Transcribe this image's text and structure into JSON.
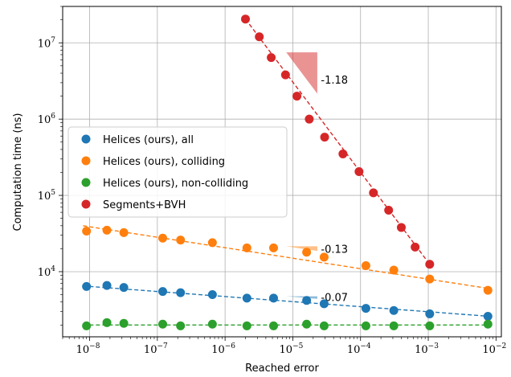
{
  "chart_data": {
    "type": "scatter",
    "title": "",
    "xlabel": "Reached error",
    "ylabel": "Computation time (ns)",
    "xscale": "log",
    "yscale": "log",
    "xlim": [
      4e-09,
      0.012
    ],
    "ylim": [
      1400,
      30000000
    ],
    "grid": true,
    "legend_position": "center-left",
    "x_ticks": [
      {
        "value": 1e-08,
        "base": "10",
        "exp": "−8"
      },
      {
        "value": 1e-07,
        "base": "10",
        "exp": "−7"
      },
      {
        "value": 1e-06,
        "base": "10",
        "exp": "−6"
      },
      {
        "value": 1e-05,
        "base": "10",
        "exp": "−5"
      },
      {
        "value": 0.0001,
        "base": "10",
        "exp": "−4"
      },
      {
        "value": 0.001,
        "base": "10",
        "exp": "−3"
      },
      {
        "value": 0.01,
        "base": "10",
        "exp": "−2"
      }
    ],
    "y_ticks": [
      {
        "value": 10000,
        "base": "10",
        "exp": "4"
      },
      {
        "value": 100000,
        "base": "10",
        "exp": "5"
      },
      {
        "value": 1000000,
        "base": "10",
        "exp": "6"
      },
      {
        "value": 10000000,
        "base": "10",
        "exp": "7"
      }
    ],
    "series": [
      {
        "name": "Helices (ours), all",
        "color": "#1f77b4",
        "x": [
          9e-09,
          1.8e-08,
          3.2e-08,
          1.2e-07,
          2.2e-07,
          6.5e-07,
          2.1e-06,
          5.2e-06,
          1.6e-05,
          2.9e-05,
          0.00012,
          0.00031,
          0.00105,
          0.0076
        ],
        "y": [
          6400,
          6600,
          6200,
          5500,
          5300,
          5000,
          4500,
          4500,
          4200,
          3800,
          3300,
          3100,
          2800,
          2600
        ],
        "fit": {
          "x": [
            8e-09,
            0.008
          ],
          "y": [
            6500,
            2600
          ]
        }
      },
      {
        "name": "Helices (ours), colliding",
        "color": "#ff7f0e",
        "x": [
          9e-09,
          1.8e-08,
          3.2e-08,
          1.2e-07,
          2.2e-07,
          6.5e-07,
          2.1e-06,
          5.2e-06,
          1.6e-05,
          2.9e-05,
          0.00012,
          0.00031,
          0.00105,
          0.0076
        ],
        "y": [
          34000,
          35000,
          32500,
          27500,
          26000,
          24000,
          20500,
          20500,
          18000,
          15500,
          12000,
          10500,
          8000,
          5700
        ],
        "fit": {
          "x": [
            8e-09,
            0.008
          ],
          "y": [
            40000,
            6000
          ]
        }
      },
      {
        "name": "Helices (ours), non-colliding",
        "color": "#2ca02c",
        "x": [
          9e-09,
          1.8e-08,
          3.2e-08,
          1.2e-07,
          2.2e-07,
          6.5e-07,
          2.1e-06,
          5.2e-06,
          1.6e-05,
          2.9e-05,
          0.00012,
          0.00031,
          0.00105,
          0.0076
        ],
        "y": [
          1950,
          2150,
          2100,
          2050,
          1950,
          2050,
          1950,
          1950,
          2050,
          1950,
          1950,
          1950,
          1950,
          2050
        ],
        "fit": {
          "x": [
            8e-09,
            0.008
          ],
          "y": [
            2000,
            2000
          ]
        }
      },
      {
        "name": "Segments+BVH",
        "color": "#d62728",
        "x": [
          2e-06,
          3.2e-06,
          4.8e-06,
          7.8e-06,
          1.15e-05,
          1.75e-05,
          2.95e-05,
          5.5e-05,
          9.5e-05,
          0.000155,
          0.00026,
          0.0004,
          0.00064,
          0.00105
        ],
        "y": [
          20500000,
          12000000,
          6400000,
          3800000,
          2000000,
          1000000,
          580000,
          350000,
          205000,
          108000,
          64000,
          38000,
          21000,
          12500
        ],
        "fit": {
          "x": [
            2e-06,
            0.00105
          ],
          "y": [
            20500000,
            12500
          ]
        }
      }
    ],
    "slope_annotations": [
      {
        "label": "-1.18",
        "color": "#d62728",
        "slope": -1.18,
        "x_start": 8e-06,
        "x_end": 2.3e-05,
        "y_start": 7500000,
        "label_x": 2.6e-05,
        "label_y": 3300000
      },
      {
        "label": "-0.13",
        "color": "#ff7f0e",
        "slope": -0.13,
        "x_start": 8e-06,
        "x_end": 2.3e-05,
        "y_start": 21500,
        "label_x": 2.6e-05,
        "label_y": 20000
      },
      {
        "label": "-0.07",
        "color": "#1f77b4",
        "slope": -0.07,
        "x_start": 8e-06,
        "x_end": 2.3e-05,
        "y_start": 4750,
        "label_x": 2.6e-05,
        "label_y": 4650
      }
    ]
  }
}
